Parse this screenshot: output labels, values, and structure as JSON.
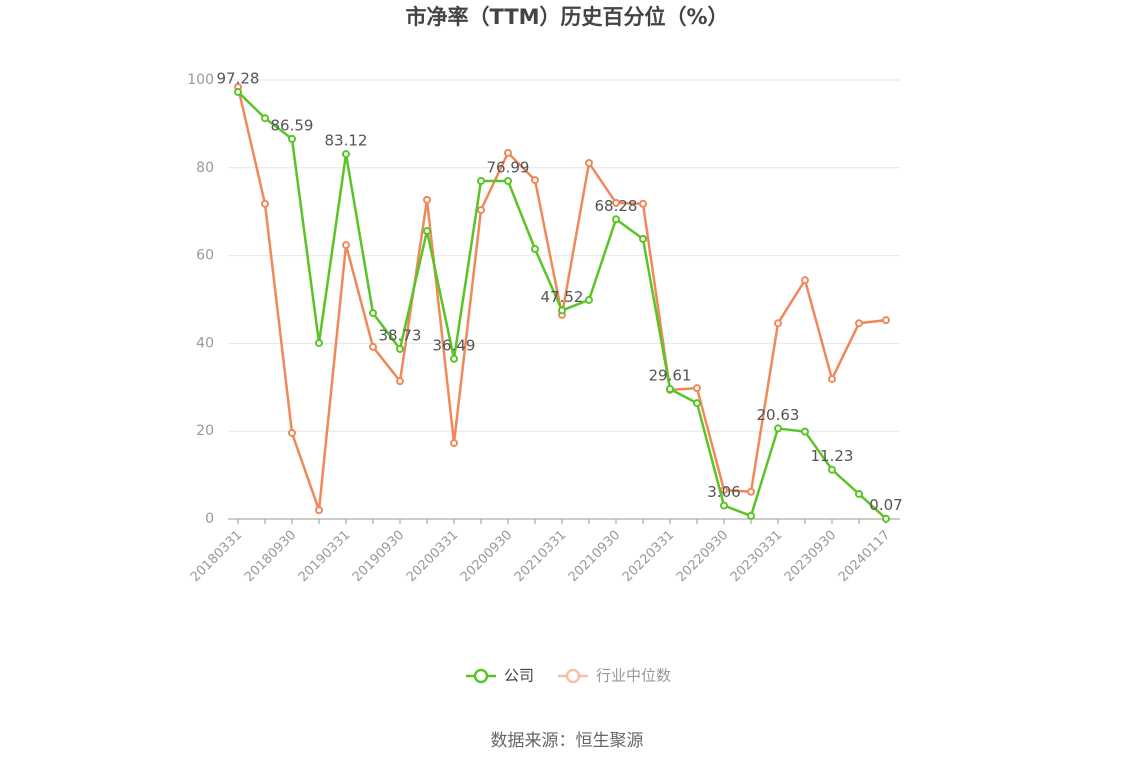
{
  "chart_data": {
    "type": "line",
    "title": "市净率（TTM）历史百分位（%）",
    "categories": [
      "20180331",
      null,
      "20180930",
      null,
      "20190331",
      null,
      "20190930",
      null,
      "20200331",
      null,
      "20200930",
      null,
      "20210331",
      null,
      "20210930",
      null,
      "20220331",
      null,
      "20220930",
      null,
      "20230331",
      null,
      "20230930",
      null,
      "20240117"
    ],
    "series": [
      {
        "name": "行业中位数",
        "color": "#f0885a",
        "values": [
          98.4,
          71.8,
          19.6,
          2.0,
          62.4,
          39.2,
          31.4,
          72.7,
          17.3,
          70.4,
          83.4,
          77.2,
          46.5,
          81.1,
          72.0,
          71.8,
          29.4,
          29.8,
          6.6,
          6.2,
          44.6,
          54.4,
          31.9,
          44.6,
          45.3
        ]
      },
      {
        "name": "公司",
        "color": "#5ac427",
        "values": [
          97.28,
          91.3,
          86.59,
          40.1,
          83.12,
          46.9,
          38.73,
          65.6,
          36.49,
          77.0,
          76.99,
          61.5,
          47.52,
          49.9,
          68.28,
          63.8,
          29.61,
          26.4,
          3.06,
          0.7,
          20.63,
          19.9,
          11.23,
          5.7,
          0.07
        ],
        "value_labels": [
          "97.28",
          null,
          "86.59",
          null,
          "83.12",
          null,
          "38.73",
          null,
          "36.49",
          null,
          "76.99",
          null,
          "47.52",
          null,
          "68.28",
          null,
          "29.61",
          null,
          "3.06",
          null,
          "20.63",
          null,
          "11.23",
          null,
          "0.07"
        ]
      }
    ],
    "ylim": [
      0,
      100
    ],
    "yticks": [
      0,
      20,
      40,
      60,
      80,
      100
    ],
    "grid": true,
    "source": "数据来源：恒生聚源"
  }
}
